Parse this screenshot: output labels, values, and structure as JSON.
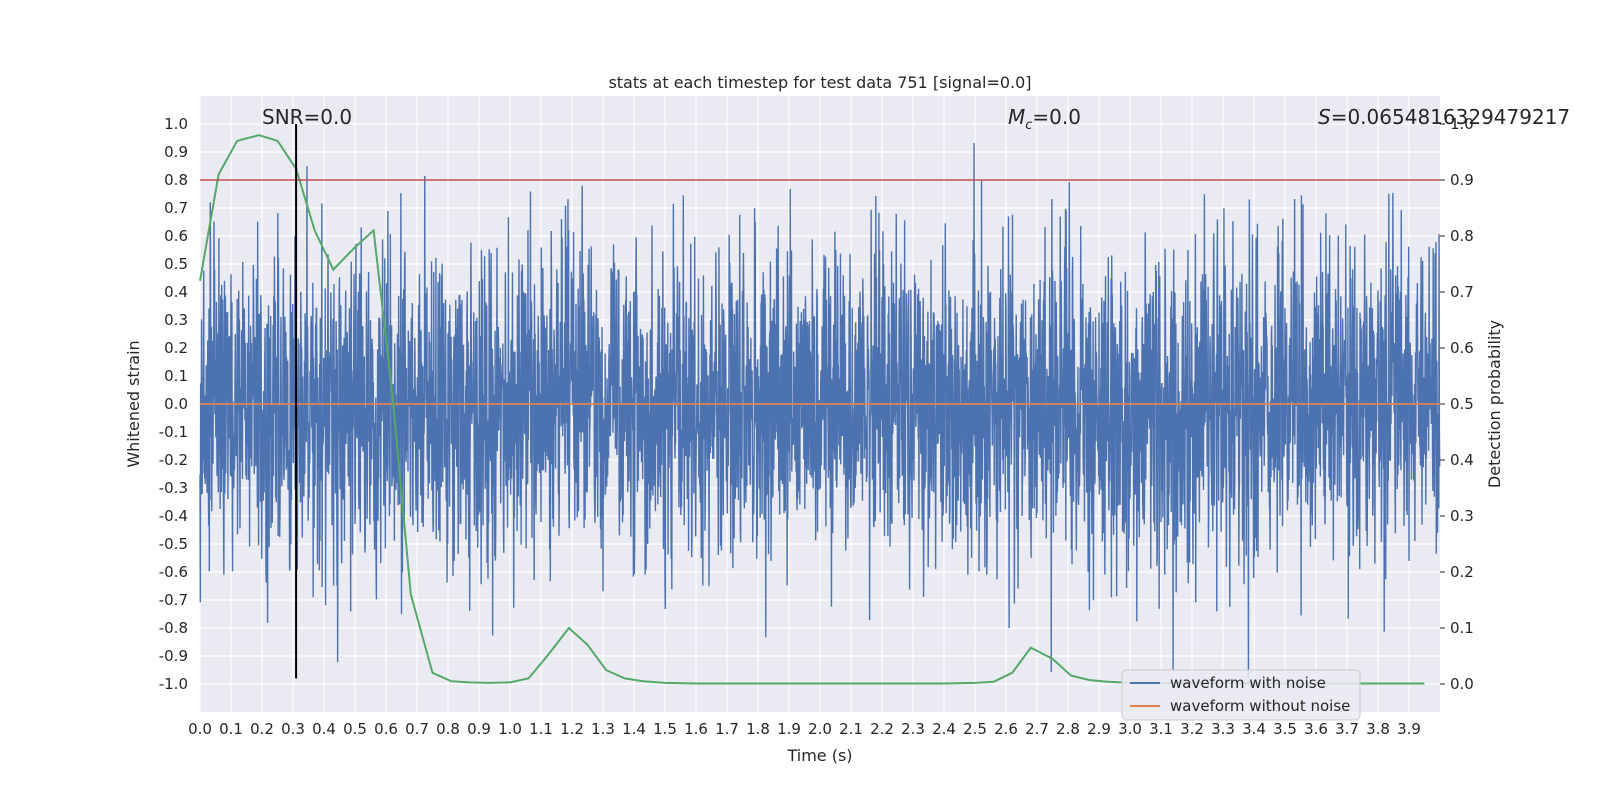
{
  "chart_data": {
    "type": "line",
    "title": "stats at each timestep for test data 751 [signal=0.0]",
    "xlabel": "Time (s)",
    "ylabel": "Whitened strain",
    "y2label": "Detection probability",
    "xlim": [
      0.0,
      4.0
    ],
    "ylim": [
      -1.1,
      1.1
    ],
    "y2lim": [
      -0.05,
      1.05
    ],
    "x_ticks": [
      0.0,
      0.1,
      0.2,
      0.3,
      0.4,
      0.5,
      0.6,
      0.7,
      0.8,
      0.9,
      1.0,
      1.1,
      1.2,
      1.3,
      1.4,
      1.5,
      1.6,
      1.7,
      1.8,
      1.9,
      2.0,
      2.1,
      2.2,
      2.3,
      2.4,
      2.5,
      2.6,
      2.7,
      2.8,
      2.9,
      3.0,
      3.1,
      3.2,
      3.3,
      3.4,
      3.5,
      3.6,
      3.7,
      3.8,
      3.9
    ],
    "y_ticks": [
      -1.0,
      -0.9,
      -0.8,
      -0.7,
      -0.6,
      -0.5,
      -0.4,
      -0.3,
      -0.2,
      -0.1,
      0.0,
      0.1,
      0.2,
      0.3,
      0.4,
      0.5,
      0.6,
      0.7,
      0.8,
      0.9,
      1.0
    ],
    "y2_ticks": [
      0.0,
      0.1,
      0.2,
      0.3,
      0.4,
      0.5,
      0.6,
      0.7,
      0.8,
      0.9,
      1.0
    ],
    "grid": true,
    "legend_position": "lower-right",
    "series": [
      {
        "name": "waveform with noise",
        "color": "#4c72b0",
        "kind": "noise",
        "duration": 4.0,
        "samples": 4000,
        "amplitude_sd": 0.28,
        "peak_max": 1.0,
        "peak_min": -0.98
      },
      {
        "name": "waveform without noise",
        "color": "#dd8452",
        "x": [
          0.0,
          4.0
        ],
        "y": [
          0.0,
          0.0
        ]
      },
      {
        "name": "detection probability",
        "color": "#55a868",
        "axis": "right",
        "x": [
          0.0,
          0.06,
          0.12,
          0.19,
          0.25,
          0.31,
          0.37,
          0.43,
          0.5,
          0.56,
          0.62,
          0.68,
          0.75,
          0.81,
          0.87,
          0.93,
          1.0,
          1.06,
          1.12,
          1.19,
          1.25,
          1.31,
          1.37,
          1.43,
          1.5,
          1.6,
          1.8,
          2.0,
          2.2,
          2.4,
          2.5,
          2.56,
          2.62,
          2.68,
          2.75,
          2.81,
          2.87,
          2.93,
          3.0,
          3.5,
          3.95
        ],
        "y": [
          0.72,
          0.91,
          0.97,
          0.98,
          0.97,
          0.92,
          0.81,
          0.74,
          0.78,
          0.81,
          0.52,
          0.16,
          0.02,
          0.005,
          0.003,
          0.002,
          0.003,
          0.01,
          0.05,
          0.1,
          0.07,
          0.025,
          0.01,
          0.005,
          0.002,
          0.001,
          0.001,
          0.001,
          0.001,
          0.001,
          0.002,
          0.004,
          0.02,
          0.065,
          0.045,
          0.015,
          0.007,
          0.004,
          0.002,
          0.001,
          0.001
        ]
      }
    ],
    "hlines": [
      {
        "axis": "right",
        "y": 0.9,
        "color": "#c44e52"
      }
    ],
    "vlines": [
      {
        "x": 0.31,
        "y_from": -0.98,
        "y_to": 1.0,
        "color": "#000000"
      }
    ],
    "annotations": [
      {
        "id": "snr",
        "text": "SNR=0.0"
      },
      {
        "id": "mc",
        "text": "=0.0",
        "symbol": "M",
        "subscript": "c"
      },
      {
        "id": "s",
        "text": "=0.0654816329479217",
        "symbol": "S"
      }
    ],
    "legend": [
      {
        "label": "waveform with noise",
        "color": "#4c72b0"
      },
      {
        "label": "waveform without noise",
        "color": "#dd8452"
      }
    ]
  }
}
